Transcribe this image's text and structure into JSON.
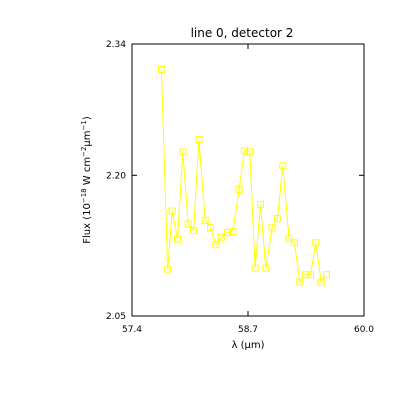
{
  "chart_data": {
    "type": "line",
    "title": "line 0, detector 2",
    "xlabel": "λ (μm)",
    "ylabel_main": "Flux (10",
    "ylabel_exp1": "−18",
    "ylabel_mid": " W cm",
    "ylabel_exp2": "−2",
    "ylabel_unit": "μm",
    "ylabel_exp3": "−1",
    "ylabel_end": ")",
    "xlim": [
      57.4,
      60.0
    ],
    "ylim": [
      2.05,
      2.34
    ],
    "xticks": [
      {
        "value": 57.4,
        "label": "57.4"
      },
      {
        "value": 58.7,
        "label": "58.7"
      },
      {
        "value": 60.0,
        "label": "60.0"
      }
    ],
    "yticks": [
      {
        "value": 2.05,
        "label": "2.05"
      },
      {
        "value": 2.2,
        "label": "2.20"
      },
      {
        "value": 2.34,
        "label": "2.34"
      }
    ],
    "series_color": "#ffff00",
    "marker": "square",
    "x": [
      57.73,
      57.8,
      57.85,
      57.91,
      57.97,
      58.03,
      58.09,
      58.15,
      58.22,
      58.28,
      58.34,
      58.4,
      58.47,
      58.53,
      58.6,
      58.66,
      58.72,
      58.78,
      58.84,
      58.9,
      58.97,
      59.03,
      59.09,
      59.16,
      59.22,
      59.28,
      59.34,
      59.4,
      59.46,
      59.52,
      59.58
    ],
    "y": [
      2.313,
      2.1,
      2.162,
      2.132,
      2.225,
      2.148,
      2.141,
      2.238,
      2.152,
      2.144,
      2.126,
      2.134,
      2.139,
      2.14,
      2.185,
      2.226,
      2.225,
      2.101,
      2.169,
      2.101,
      2.144,
      2.154,
      2.21,
      2.133,
      2.128,
      2.086,
      2.094,
      2.094,
      2.128,
      2.086,
      2.094
    ]
  }
}
